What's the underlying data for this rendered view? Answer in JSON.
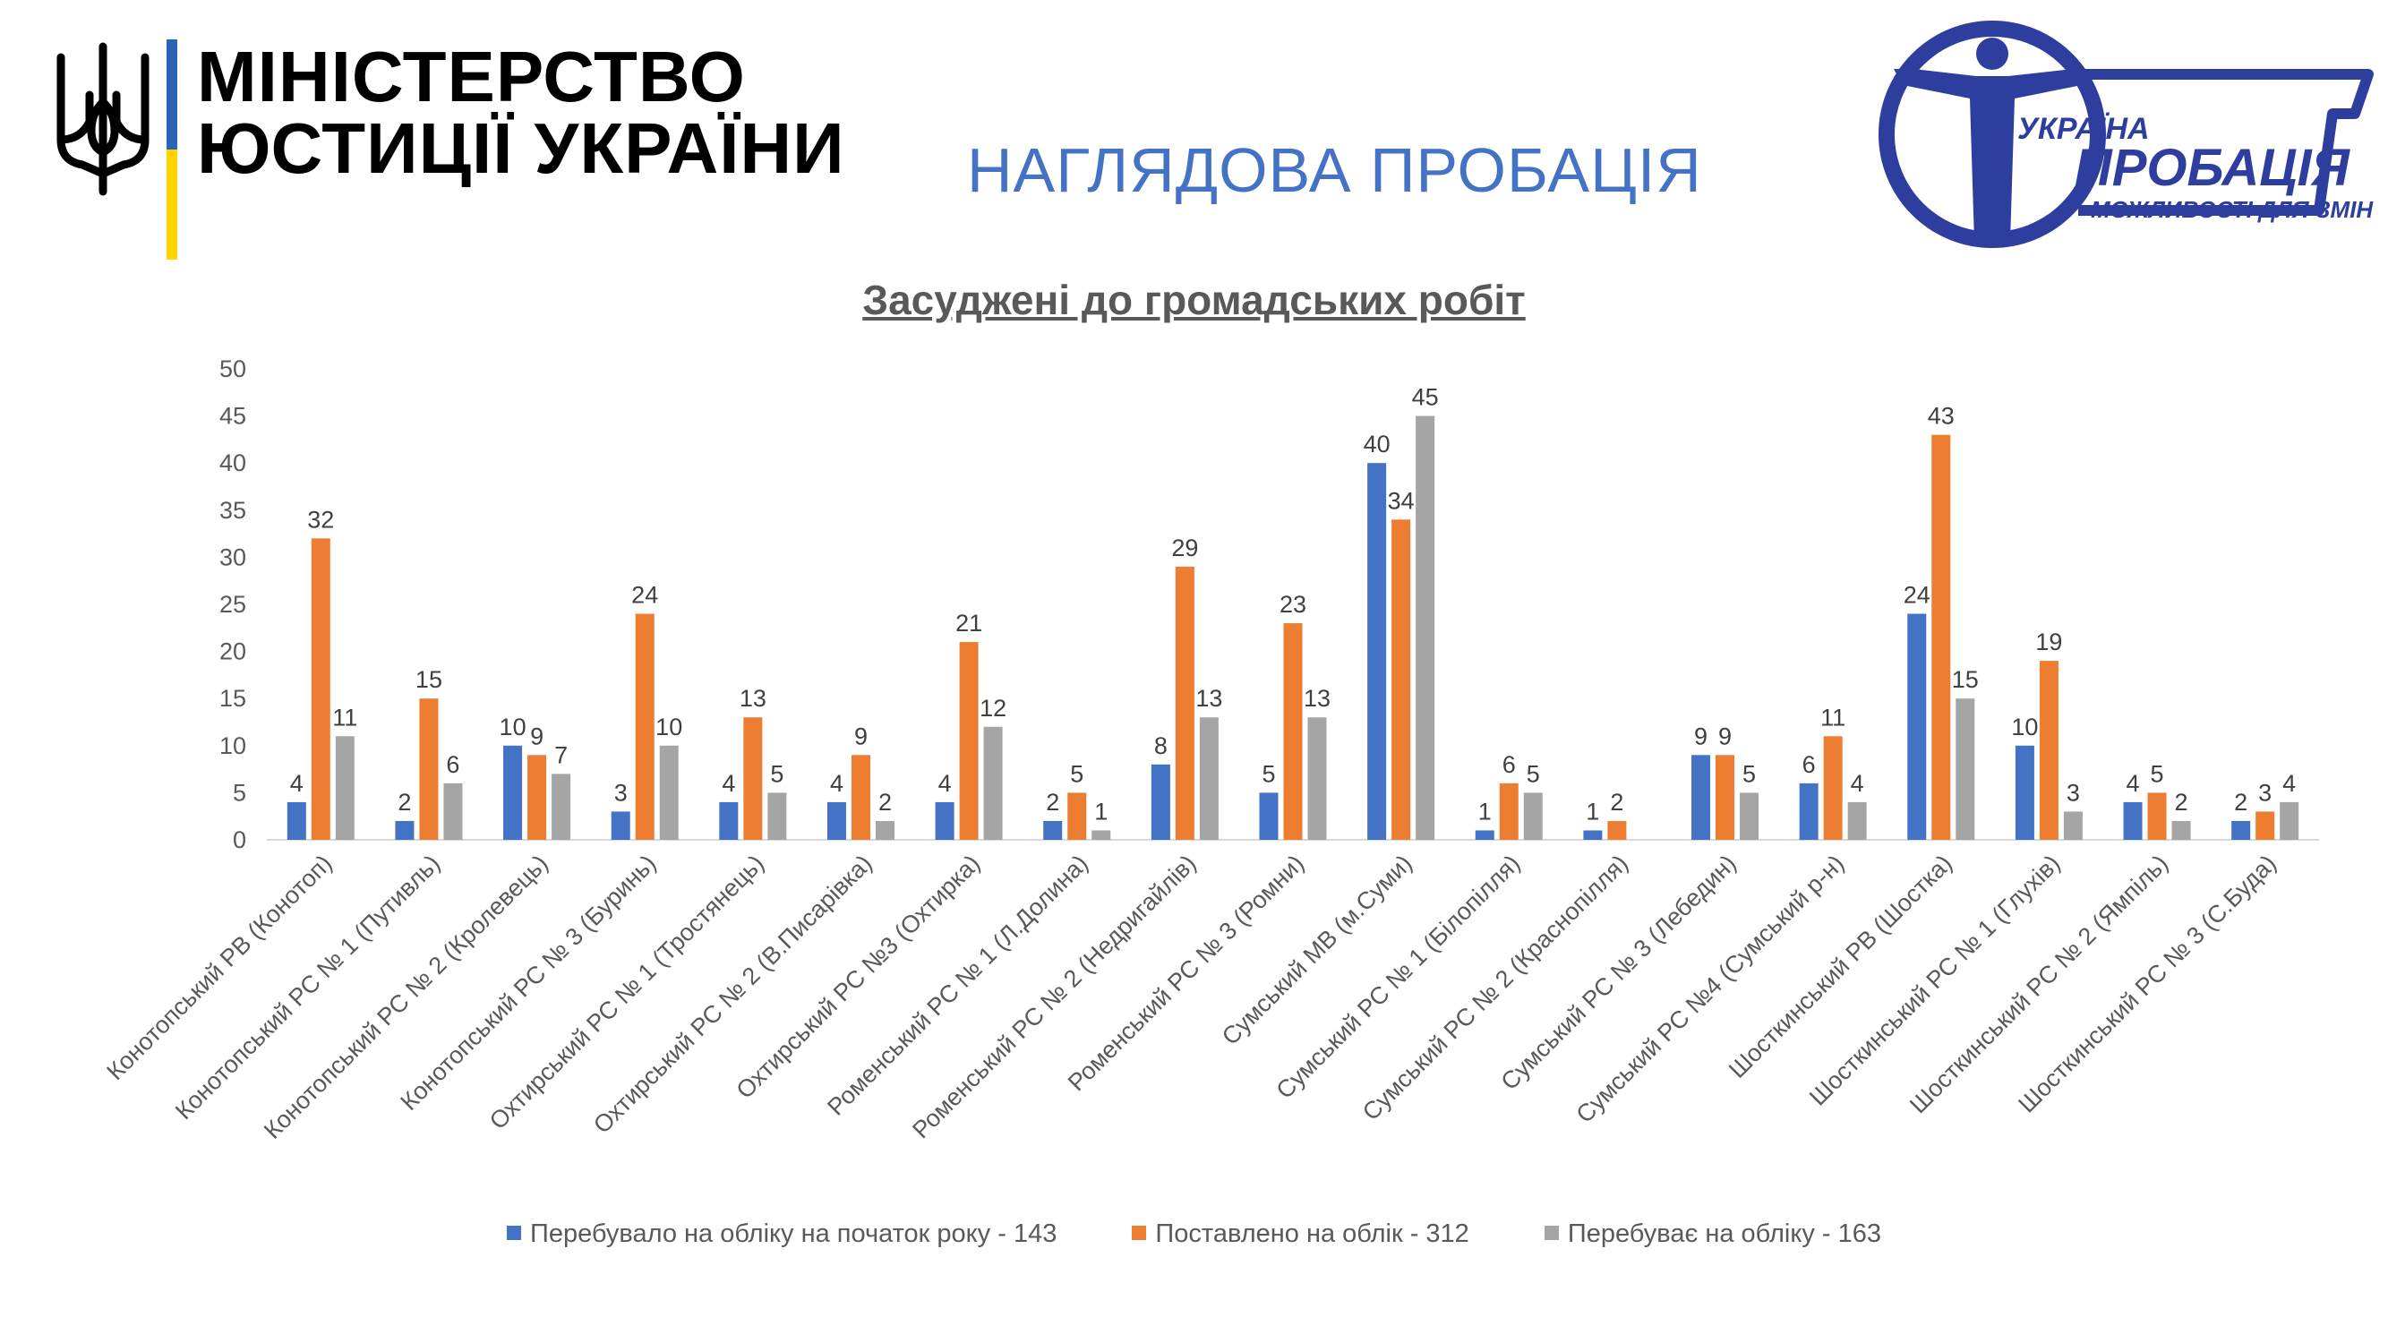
{
  "header": {
    "ministry_line1": "МІНІСТЕРСТВО",
    "ministry_line2": "ЮСТИЦІЇ УКРАЇНИ",
    "page_title": "НАГЛЯДОВА ПРОБАЦІЯ",
    "logo_text1": "УКРАЇНА",
    "logo_text2": "ПРОБАЦІЯ",
    "logo_text3": "МОЖЛИВОСТІ ДЛЯ ЗМІН"
  },
  "colors": {
    "series1": "#4472c4",
    "series2": "#ed7d31",
    "series3": "#a5a5a5",
    "logo_blue": "#2e3e9e",
    "flag_blue": "#2b63b6",
    "flag_yellow": "#ffd500"
  },
  "chart_data": {
    "type": "bar",
    "title": "Засуджені до громадських робіт",
    "xlabel": "",
    "ylabel": "",
    "ylim": [
      0,
      50
    ],
    "yticks": [
      0,
      5,
      10,
      15,
      20,
      25,
      30,
      35,
      40,
      45,
      50
    ],
    "legend_position": "bottom",
    "categories": [
      "Конотопський РВ (Конотоп)",
      "Конотопський РС № 1 (Путивль)",
      "Конотопський РС № 2 (Кролевець)",
      "Конотопський РС № 3 (Буринь)",
      "Охтирський РС № 1 (Тростянець)",
      "Охтирський РС № 2 (В.Писарівка)",
      "Охтирський РС №3 (Охтирка)",
      "Роменський РС № 1 (Л.Долина)",
      "Роменський РС № 2 (Недригайлів)",
      "Роменський РС № 3 (Ромни)",
      "Сумський МВ (м.Суми)",
      "Сумський РС № 1 (Білопілля)",
      "Сумський РС № 2 (Краснопілля)",
      "Сумський РС № 3 (Лебедин)",
      "Сумський РС №4 (Сумський р-н)",
      "Шосткинський РВ (Шостка)",
      "Шосткинський РС № 1 (Глухів)",
      "Шосткинський РС № 2 (Ямпіль)",
      "Шосткинський РС № 3 (С.Буда)"
    ],
    "series": [
      {
        "name": "Перебувало на обліку на початок року - 143",
        "values": [
          4,
          2,
          10,
          3,
          4,
          4,
          4,
          2,
          8,
          5,
          40,
          1,
          1,
          9,
          6,
          24,
          10,
          4,
          2
        ]
      },
      {
        "name": "Поставлено на облік - 312",
        "values": [
          32,
          15,
          9,
          24,
          13,
          9,
          21,
          5,
          29,
          23,
          34,
          6,
          2,
          9,
          11,
          43,
          19,
          5,
          3
        ]
      },
      {
        "name": "Перебуває на обліку - 163",
        "values": [
          11,
          6,
          7,
          10,
          5,
          2,
          12,
          1,
          13,
          13,
          45,
          5,
          null,
          5,
          4,
          15,
          3,
          2,
          4
        ]
      }
    ]
  }
}
